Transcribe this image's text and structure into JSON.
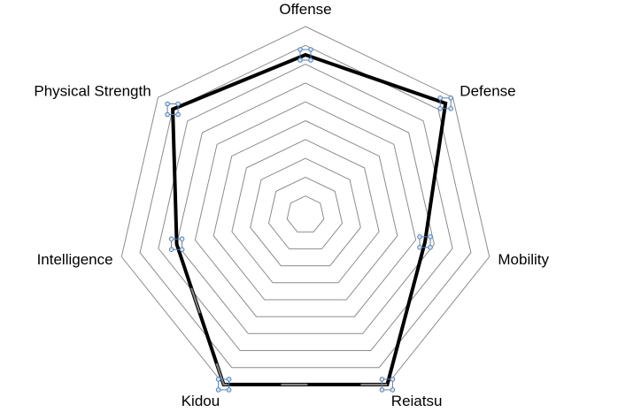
{
  "chart_data": {
    "type": "radar",
    "categories": [
      "Offense",
      "Defense",
      "Mobility",
      "Reiatsu",
      "Kidou",
      "Intelligence",
      "Physical Strength"
    ],
    "series": [
      {
        "values": [
          8.5,
          9.5,
          6.5,
          10,
          10,
          7,
          9
        ]
      }
    ],
    "rlim": [
      0,
      10
    ],
    "ring_count": 10,
    "grid": true,
    "legend": "none",
    "colors": {
      "grid": "#8c8c8c",
      "series_line": "#000000",
      "series_line_highlight": "#888888",
      "handle_stroke": "#4f81bd",
      "handle_fill": "#dbe5f1"
    }
  }
}
